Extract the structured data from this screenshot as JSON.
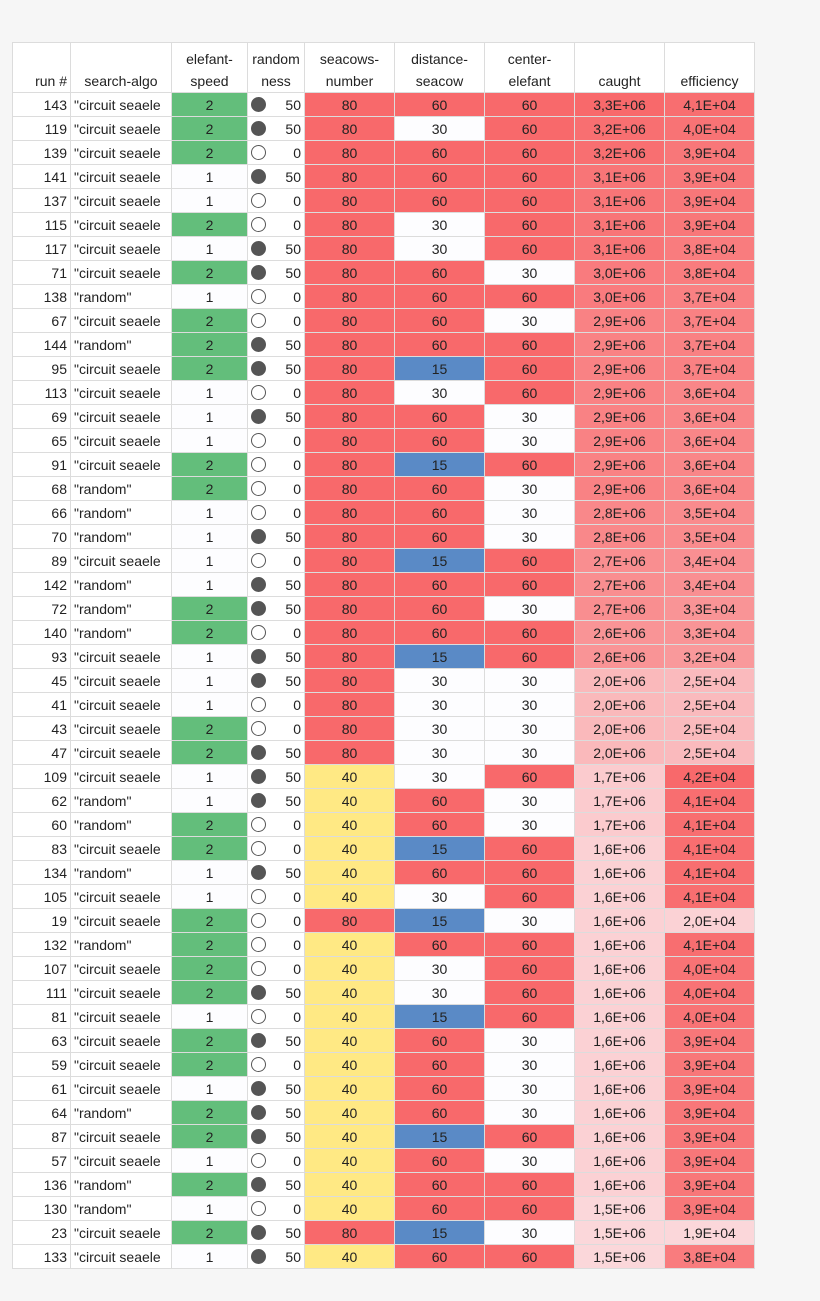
{
  "headers": [
    "run #",
    "search-algo",
    "elefant-\nspeed",
    "random\nness",
    "seacows-\nnumber",
    "distance-\nseacow",
    "center-\nelefant",
    "caught",
    "efficiency"
  ],
  "colors": {
    "green": "#63be7b",
    "red": "#f8696b",
    "yellow": "#ffe984",
    "blue": "#5a8ac6",
    "white": "#fdfdff"
  },
  "icons": {
    "randomness_50": "filled-circle-icon",
    "randomness_0": "empty-circle-icon"
  },
  "rows": [
    [
      "143",
      "\"circuit seaele",
      "2",
      "50",
      "80",
      "60",
      "60",
      "3,3E+06",
      "4,1E+04"
    ],
    [
      "119",
      "\"circuit seaele",
      "2",
      "50",
      "80",
      "30",
      "60",
      "3,2E+06",
      "4,0E+04"
    ],
    [
      "139",
      "\"circuit seaele",
      "2",
      "0",
      "80",
      "60",
      "60",
      "3,2E+06",
      "3,9E+04"
    ],
    [
      "141",
      "\"circuit seaele",
      "1",
      "50",
      "80",
      "60",
      "60",
      "3,1E+06",
      "3,9E+04"
    ],
    [
      "137",
      "\"circuit seaele",
      "1",
      "0",
      "80",
      "60",
      "60",
      "3,1E+06",
      "3,9E+04"
    ],
    [
      "115",
      "\"circuit seaele",
      "2",
      "0",
      "80",
      "30",
      "60",
      "3,1E+06",
      "3,9E+04"
    ],
    [
      "117",
      "\"circuit seaele",
      "1",
      "50",
      "80",
      "30",
      "60",
      "3,1E+06",
      "3,8E+04"
    ],
    [
      "71",
      "\"circuit seaele",
      "2",
      "50",
      "80",
      "60",
      "30",
      "3,0E+06",
      "3,8E+04"
    ],
    [
      "138",
      "\"random\"",
      "1",
      "0",
      "80",
      "60",
      "60",
      "3,0E+06",
      "3,7E+04"
    ],
    [
      "67",
      "\"circuit seaele",
      "2",
      "0",
      "80",
      "60",
      "30",
      "2,9E+06",
      "3,7E+04"
    ],
    [
      "144",
      "\"random\"",
      "2",
      "50",
      "80",
      "60",
      "60",
      "2,9E+06",
      "3,7E+04"
    ],
    [
      "95",
      "\"circuit seaele",
      "2",
      "50",
      "80",
      "15",
      "60",
      "2,9E+06",
      "3,7E+04"
    ],
    [
      "113",
      "\"circuit seaele",
      "1",
      "0",
      "80",
      "30",
      "60",
      "2,9E+06",
      "3,6E+04"
    ],
    [
      "69",
      "\"circuit seaele",
      "1",
      "50",
      "80",
      "60",
      "30",
      "2,9E+06",
      "3,6E+04"
    ],
    [
      "65",
      "\"circuit seaele",
      "1",
      "0",
      "80",
      "60",
      "30",
      "2,9E+06",
      "3,6E+04"
    ],
    [
      "91",
      "\"circuit seaele",
      "2",
      "0",
      "80",
      "15",
      "60",
      "2,9E+06",
      "3,6E+04"
    ],
    [
      "68",
      "\"random\"",
      "2",
      "0",
      "80",
      "60",
      "30",
      "2,9E+06",
      "3,6E+04"
    ],
    [
      "66",
      "\"random\"",
      "1",
      "0",
      "80",
      "60",
      "30",
      "2,8E+06",
      "3,5E+04"
    ],
    [
      "70",
      "\"random\"",
      "1",
      "50",
      "80",
      "60",
      "30",
      "2,8E+06",
      "3,5E+04"
    ],
    [
      "89",
      "\"circuit seaele",
      "1",
      "0",
      "80",
      "15",
      "60",
      "2,7E+06",
      "3,4E+04"
    ],
    [
      "142",
      "\"random\"",
      "1",
      "50",
      "80",
      "60",
      "60",
      "2,7E+06",
      "3,4E+04"
    ],
    [
      "72",
      "\"random\"",
      "2",
      "50",
      "80",
      "60",
      "30",
      "2,7E+06",
      "3,3E+04"
    ],
    [
      "140",
      "\"random\"",
      "2",
      "0",
      "80",
      "60",
      "60",
      "2,6E+06",
      "3,3E+04"
    ],
    [
      "93",
      "\"circuit seaele",
      "1",
      "50",
      "80",
      "15",
      "60",
      "2,6E+06",
      "3,2E+04"
    ],
    [
      "45",
      "\"circuit seaele",
      "1",
      "50",
      "80",
      "30",
      "30",
      "2,0E+06",
      "2,5E+04"
    ],
    [
      "41",
      "\"circuit seaele",
      "1",
      "0",
      "80",
      "30",
      "30",
      "2,0E+06",
      "2,5E+04"
    ],
    [
      "43",
      "\"circuit seaele",
      "2",
      "0",
      "80",
      "30",
      "30",
      "2,0E+06",
      "2,5E+04"
    ],
    [
      "47",
      "\"circuit seaele",
      "2",
      "50",
      "80",
      "30",
      "30",
      "2,0E+06",
      "2,5E+04"
    ],
    [
      "109",
      "\"circuit seaele",
      "1",
      "50",
      "40",
      "30",
      "60",
      "1,7E+06",
      "4,2E+04"
    ],
    [
      "62",
      "\"random\"",
      "1",
      "50",
      "40",
      "60",
      "30",
      "1,7E+06",
      "4,1E+04"
    ],
    [
      "60",
      "\"random\"",
      "2",
      "0",
      "40",
      "60",
      "30",
      "1,7E+06",
      "4,1E+04"
    ],
    [
      "83",
      "\"circuit seaele",
      "2",
      "0",
      "40",
      "15",
      "60",
      "1,6E+06",
      "4,1E+04"
    ],
    [
      "134",
      "\"random\"",
      "1",
      "50",
      "40",
      "60",
      "60",
      "1,6E+06",
      "4,1E+04"
    ],
    [
      "105",
      "\"circuit seaele",
      "1",
      "0",
      "40",
      "30",
      "60",
      "1,6E+06",
      "4,1E+04"
    ],
    [
      "19",
      "\"circuit seaele",
      "2",
      "0",
      "80",
      "15",
      "30",
      "1,6E+06",
      "2,0E+04"
    ],
    [
      "132",
      "\"random\"",
      "2",
      "0",
      "40",
      "60",
      "60",
      "1,6E+06",
      "4,1E+04"
    ],
    [
      "107",
      "\"circuit seaele",
      "2",
      "0",
      "40",
      "30",
      "60",
      "1,6E+06",
      "4,0E+04"
    ],
    [
      "111",
      "\"circuit seaele",
      "2",
      "50",
      "40",
      "30",
      "60",
      "1,6E+06",
      "4,0E+04"
    ],
    [
      "81",
      "\"circuit seaele",
      "1",
      "0",
      "40",
      "15",
      "60",
      "1,6E+06",
      "4,0E+04"
    ],
    [
      "63",
      "\"circuit seaele",
      "2",
      "50",
      "40",
      "60",
      "30",
      "1,6E+06",
      "3,9E+04"
    ],
    [
      "59",
      "\"circuit seaele",
      "2",
      "0",
      "40",
      "60",
      "30",
      "1,6E+06",
      "3,9E+04"
    ],
    [
      "61",
      "\"circuit seaele",
      "1",
      "50",
      "40",
      "60",
      "30",
      "1,6E+06",
      "3,9E+04"
    ],
    [
      "64",
      "\"random\"",
      "2",
      "50",
      "40",
      "60",
      "30",
      "1,6E+06",
      "3,9E+04"
    ],
    [
      "87",
      "\"circuit seaele",
      "2",
      "50",
      "40",
      "15",
      "60",
      "1,6E+06",
      "3,9E+04"
    ],
    [
      "57",
      "\"circuit seaele",
      "1",
      "0",
      "40",
      "60",
      "30",
      "1,6E+06",
      "3,9E+04"
    ],
    [
      "136",
      "\"random\"",
      "2",
      "50",
      "40",
      "60",
      "60",
      "1,6E+06",
      "3,9E+04"
    ],
    [
      "130",
      "\"random\"",
      "1",
      "0",
      "40",
      "60",
      "60",
      "1,5E+06",
      "3,9E+04"
    ],
    [
      "23",
      "\"circuit seaele",
      "2",
      "50",
      "80",
      "15",
      "30",
      "1,5E+06",
      "1,9E+04"
    ],
    [
      "133",
      "\"circuit seaele",
      "1",
      "50",
      "40",
      "60",
      "60",
      "1,5E+06",
      "3,8E+04"
    ]
  ]
}
